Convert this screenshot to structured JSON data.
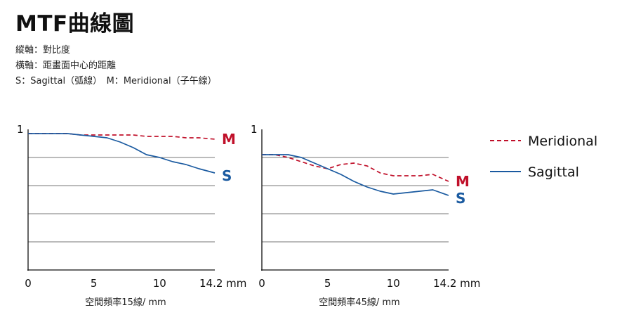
{
  "title": "MTF曲線圖",
  "description": [
    "縱軸：對比度",
    "橫軸：距畫面中心的距離",
    "S：Sagittal（弧線）　M：Meridional（子午線）"
  ],
  "colors": {
    "meridional": "#c0102a",
    "sagittal": "#1a5aa0",
    "grid": "#777777",
    "axis": "#111111"
  },
  "legend": [
    {
      "series": "meridional",
      "label": "Meridional",
      "style": "dashed"
    },
    {
      "series": "sagittal",
      "label": "Sagittal",
      "style": "solid"
    }
  ],
  "chart_data": [
    {
      "type": "line",
      "xlabel": "空間頻率15線/ mm",
      "xlim": [
        0,
        14.2
      ],
      "ylim": [
        0,
        1
      ],
      "ytick_label": "1",
      "xticks": [
        {
          "value": 0,
          "label": "0"
        },
        {
          "value": 5,
          "label": "5"
        },
        {
          "value": 10,
          "label": "10"
        },
        {
          "value": 14.2,
          "label": "14.2 mm"
        }
      ],
      "gridlines_y": [
        0.2,
        0.4,
        0.6,
        0.8
      ],
      "series": [
        {
          "key": "meridional",
          "name": "M",
          "x": [
            0,
            1,
            2,
            3,
            4,
            5,
            6,
            7,
            8,
            9,
            10,
            11,
            12,
            13,
            14.2
          ],
          "y": [
            0.97,
            0.97,
            0.97,
            0.97,
            0.96,
            0.96,
            0.96,
            0.96,
            0.96,
            0.95,
            0.95,
            0.95,
            0.94,
            0.94,
            0.93
          ]
        },
        {
          "key": "sagittal",
          "name": "S",
          "x": [
            0,
            1,
            2,
            3,
            4,
            5,
            6,
            7,
            8,
            9,
            10,
            11,
            12,
            13,
            14.2
          ],
          "y": [
            0.97,
            0.97,
            0.97,
            0.97,
            0.96,
            0.95,
            0.94,
            0.91,
            0.87,
            0.82,
            0.8,
            0.77,
            0.75,
            0.72,
            0.69
          ]
        }
      ]
    },
    {
      "type": "line",
      "xlabel": "空間頻率45線/ mm",
      "xlim": [
        0,
        14.2
      ],
      "ylim": [
        0,
        1
      ],
      "ytick_label": "1",
      "xticks": [
        {
          "value": 0,
          "label": "0"
        },
        {
          "value": 5,
          "label": "5"
        },
        {
          "value": 10,
          "label": "10"
        },
        {
          "value": 14.2,
          "label": "14.2 mm"
        }
      ],
      "gridlines_y": [
        0.2,
        0.4,
        0.6,
        0.8
      ],
      "series": [
        {
          "key": "meridional",
          "name": "M",
          "x": [
            0,
            1,
            2,
            3,
            4,
            5,
            6,
            7,
            8,
            9,
            10,
            11,
            12,
            13,
            14.2
          ],
          "y": [
            0.82,
            0.82,
            0.8,
            0.77,
            0.74,
            0.72,
            0.75,
            0.76,
            0.74,
            0.69,
            0.67,
            0.67,
            0.67,
            0.68,
            0.63
          ]
        },
        {
          "key": "sagittal",
          "name": "S",
          "x": [
            0,
            1,
            2,
            3,
            4,
            5,
            6,
            7,
            8,
            9,
            10,
            11,
            12,
            13,
            14.2
          ],
          "y": [
            0.82,
            0.82,
            0.82,
            0.8,
            0.76,
            0.72,
            0.68,
            0.63,
            0.59,
            0.56,
            0.54,
            0.55,
            0.56,
            0.57,
            0.53
          ]
        }
      ]
    }
  ]
}
